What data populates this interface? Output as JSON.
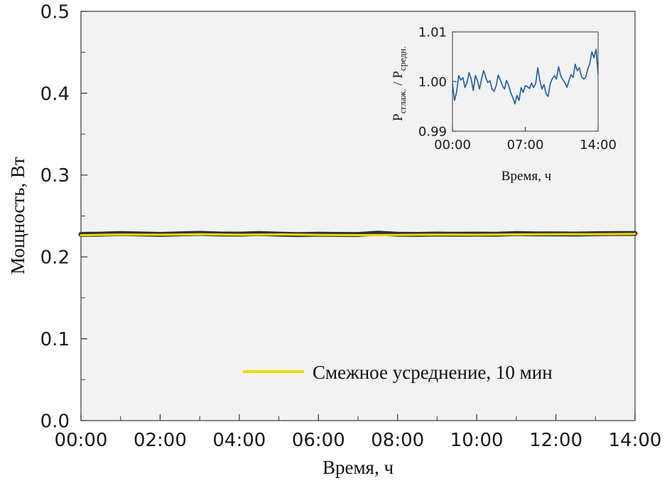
{
  "chart_data": [
    {
      "type": "line",
      "xlabel": "Время, ч",
      "ylabel": "Мощность, Вт",
      "xlim": [
        0,
        14
      ],
      "ylim": [
        0,
        0.5
      ],
      "x_tick_labels": [
        "00:00",
        "02:00",
        "04:00",
        "06:00",
        "08:00",
        "10:00",
        "12:00",
        "14:00"
      ],
      "x_tick_values": [
        0,
        2,
        4,
        6,
        8,
        10,
        12,
        14
      ],
      "y_tick_labels": [
        "0.0",
        "0.1",
        "0.2",
        "0.3",
        "0.4",
        "0.5"
      ],
      "y_tick_values": [
        0.0,
        0.1,
        0.2,
        0.3,
        0.4,
        0.5
      ],
      "grid": false,
      "legend_position": "bottom-right",
      "background_color": "#f2f2f2",
      "series": [
        {
          "name": "",
          "color": "#2b3238",
          "x": [
            0.0,
            0.5,
            1.0,
            1.5,
            2.0,
            2.5,
            3.0,
            3.5,
            4.0,
            4.5,
            5.0,
            5.5,
            6.0,
            6.5,
            7.0,
            7.5,
            8.0,
            8.5,
            9.0,
            9.5,
            10.0,
            10.5,
            11.0,
            11.5,
            12.0,
            12.5,
            13.0,
            13.5,
            14.0
          ],
          "y": [
            0.2275,
            0.2278,
            0.2285,
            0.228,
            0.2275,
            0.2282,
            0.2288,
            0.228,
            0.2278,
            0.2285,
            0.2278,
            0.2272,
            0.2276,
            0.2275,
            0.2274,
            0.229,
            0.2276,
            0.2275,
            0.2279,
            0.2276,
            0.2278,
            0.2277,
            0.2285,
            0.2281,
            0.2282,
            0.2279,
            0.2283,
            0.2285,
            0.2286
          ]
        },
        {
          "name": "Смежное усреднение, 10 мин",
          "color": "#f2d800",
          "x": [
            0.0,
            1.0,
            2.0,
            3.0,
            4.0,
            5.0,
            6.0,
            7.0,
            8.0,
            9.0,
            10.0,
            11.0,
            12.0,
            13.0,
            14.0
          ],
          "y": [
            0.2265,
            0.2272,
            0.227,
            0.2276,
            0.227,
            0.2275,
            0.2268,
            0.2266,
            0.2268,
            0.2271,
            0.227,
            0.2275,
            0.2276,
            0.2277,
            0.2281
          ]
        }
      ]
    },
    {
      "type": "line",
      "xlabel": "Время, ч",
      "ylabel_main": "P",
      "ylabel_sub1": "сглаж.",
      "ylabel_mid": " / P",
      "ylabel_sub2": "средн.",
      "xlim": [
        0,
        14
      ],
      "ylim": [
        0.99,
        1.01
      ],
      "x_tick_labels": [
        "00:00",
        "07:00",
        "14:00"
      ],
      "x_tick_values": [
        0,
        7,
        14
      ],
      "y_tick_labels": [
        "0.99",
        "1.00",
        "1.01"
      ],
      "y_tick_values": [
        0.99,
        1.0,
        1.01
      ],
      "grid": false,
      "series": [
        {
          "name": "",
          "color": "#1f5aa6",
          "x": [
            0.0,
            0.2,
            0.4,
            0.6,
            0.8,
            1.0,
            1.2,
            1.4,
            1.6,
            1.8,
            2.0,
            2.2,
            2.4,
            2.6,
            2.8,
            3.0,
            3.2,
            3.4,
            3.6,
            3.8,
            4.0,
            4.2,
            4.4,
            4.6,
            4.8,
            5.0,
            5.2,
            5.4,
            5.6,
            5.8,
            6.0,
            6.2,
            6.4,
            6.6,
            6.8,
            7.0,
            7.2,
            7.4,
            7.6,
            7.8,
            8.0,
            8.2,
            8.4,
            8.6,
            8.8,
            9.0,
            9.2,
            9.4,
            9.6,
            9.8,
            10.0,
            10.2,
            10.4,
            10.6,
            10.8,
            11.0,
            11.2,
            11.4,
            11.6,
            11.8,
            12.0,
            12.2,
            12.4,
            12.6,
            12.8,
            13.0,
            13.2,
            13.4,
            13.6,
            13.8,
            14.0
          ],
          "y": [
            0.9995,
            0.9962,
            0.998,
            1.0012,
            1.0003,
            1.0008,
            0.9988,
            0.9998,
            1.0018,
            1.0005,
            0.9982,
            1.0012,
            1.0002,
            0.9985,
            1.0006,
            1.0022,
            1.0008,
            0.9998,
            1.0002,
            0.9985,
            0.998,
            0.9992,
            1.0013,
            1.0003,
            0.9992,
            0.9985,
            1.0002,
            0.9992,
            0.9978,
            0.9968,
            0.9955,
            0.9972,
            0.9962,
            0.9988,
            0.9978,
            0.9992,
            0.999,
            0.9986,
            0.9997,
            0.9988,
            0.9996,
            1.0028,
            1.0002,
            0.9985,
            0.9994,
            0.9975,
            0.997,
            0.9996,
            1.0006,
            1.0012,
            1.0005,
            1.003,
            1.0012,
            1.0004,
            0.9998,
            0.9988,
            1.0002,
            1.0014,
            1.0008,
            1.0035,
            1.0022,
            1.0028,
            1.001,
            1.0005,
            1.0008,
            1.0025,
            1.0036,
            1.006,
            1.0048,
            1.0065,
            1.0015
          ]
        }
      ]
    }
  ]
}
